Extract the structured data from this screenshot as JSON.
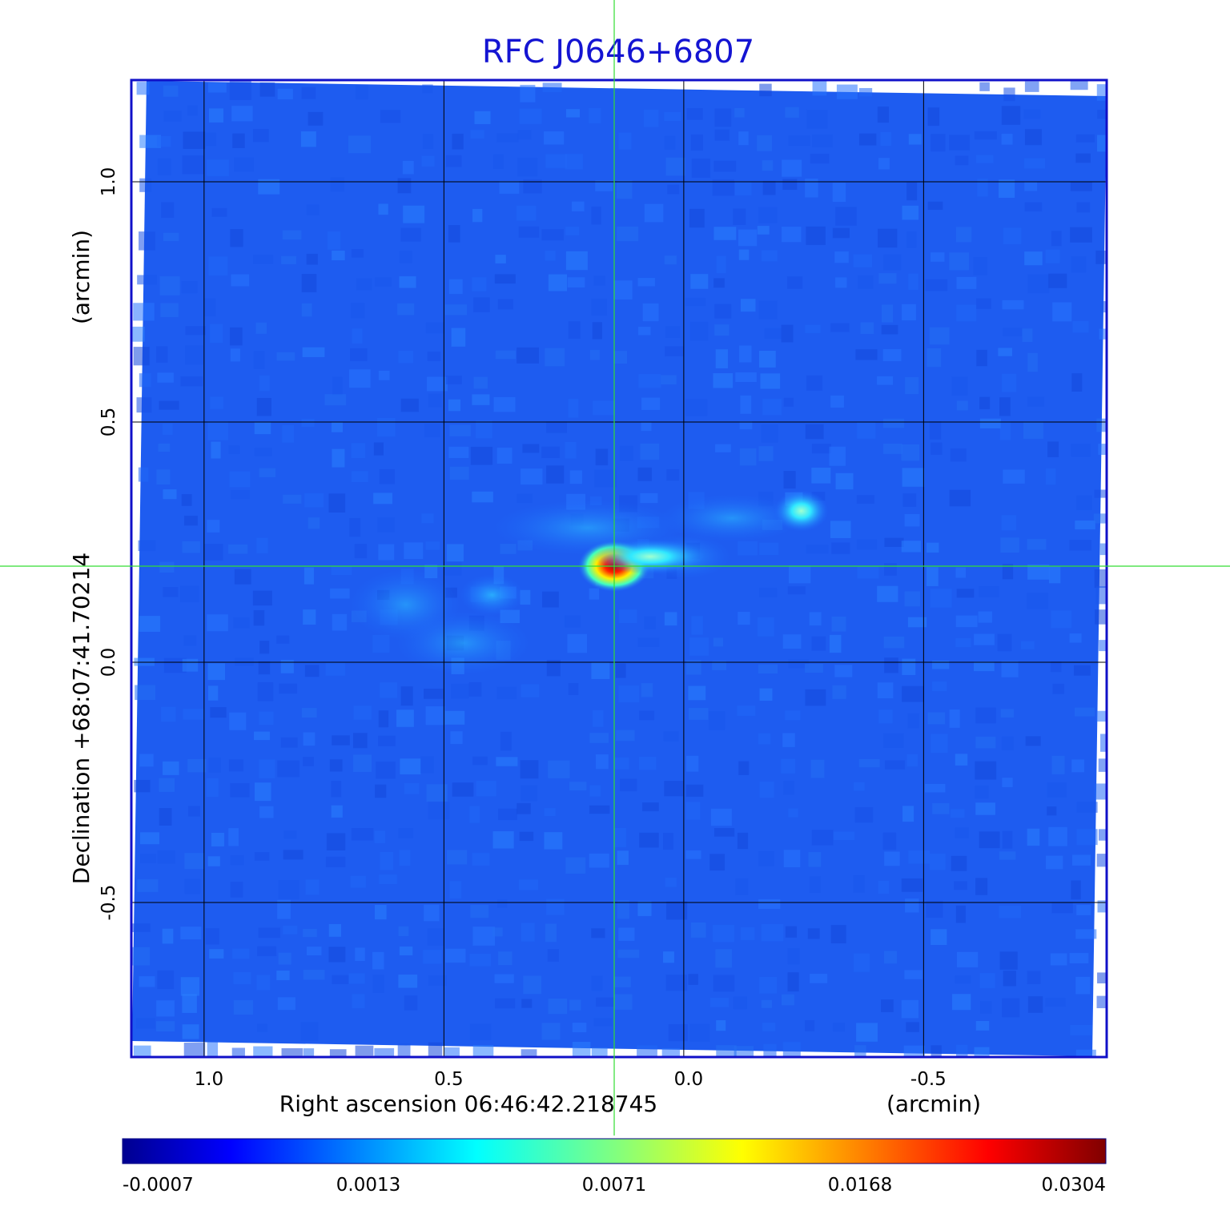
{
  "chart_data": {
    "type": "heatmap",
    "title": "RFC J0646+6807",
    "xlabel": "Right ascension  06:46:42.218745",
    "xunit": "(arcmin)",
    "ylabel": "Declination  +68:07:41.70214",
    "yunit": "(arcmin)",
    "x_ticks": [
      {
        "value": 1.0,
        "label": "1.0"
      },
      {
        "value": 0.5,
        "label": "0.5"
      },
      {
        "value": 0.0,
        "label": "0.0"
      },
      {
        "value": -0.5,
        "label": "-0.5"
      }
    ],
    "y_ticks": [
      {
        "value": 1.0,
        "label": "1.0"
      },
      {
        "value": 0.5,
        "label": "0.5"
      },
      {
        "value": 0.0,
        "label": "0.0"
      },
      {
        "value": -0.5,
        "label": "-0.5"
      }
    ],
    "xlim": [
      1.15,
      -0.88
    ],
    "ylim": [
      -0.82,
      1.21
    ],
    "x_reversed": true,
    "grid": true,
    "crosshair": {
      "x": 0.145,
      "y": 0.2
    },
    "colorbar": {
      "colormap": "jet",
      "ticks": [
        "-0.0007",
        "0.0013",
        "0.0071",
        "0.0168",
        "0.0304"
      ]
    },
    "sources": [
      {
        "x": 0.145,
        "y": 0.2,
        "peak": 0.0304
      },
      {
        "x": 0.07,
        "y": 0.22,
        "peak": 0.004
      },
      {
        "x": -0.245,
        "y": 0.315,
        "peak": 0.0065
      },
      {
        "x": 0.4,
        "y": 0.14,
        "peak": 0.0018
      }
    ],
    "colors": {
      "frame": "#1010c8",
      "title": "#1414d2",
      "grid": "#000000",
      "crosshair": "#33dd33"
    }
  }
}
